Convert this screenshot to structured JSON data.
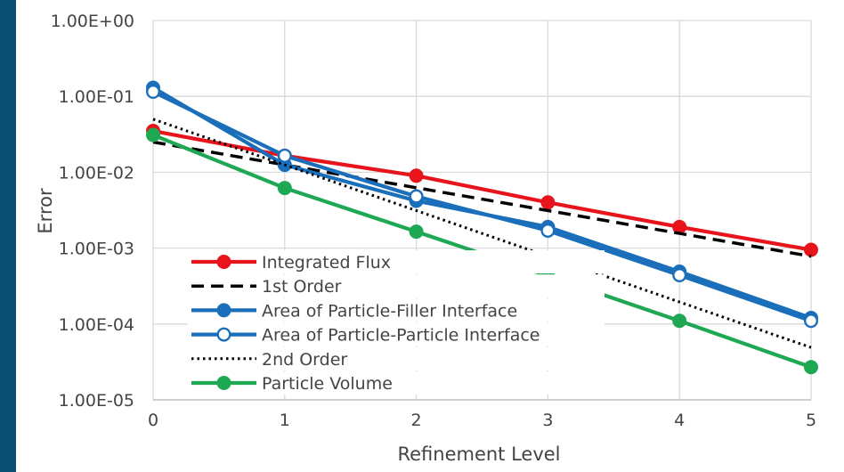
{
  "chart_data": {
    "type": "line",
    "xlabel": "Refinement Level",
    "ylabel": "Error",
    "x": [
      0,
      1,
      2,
      3,
      4,
      5
    ],
    "x_tick_labels": [
      "0",
      "1",
      "2",
      "3",
      "4",
      "5"
    ],
    "y_scale": "log",
    "ylim": [
      1e-05,
      1
    ],
    "y_tick_values": [
      1,
      0.1,
      0.01,
      0.001,
      0.0001,
      1e-05
    ],
    "y_tick_labels": [
      "1.00E+00",
      "1.00E-01",
      "1.00E-02",
      "1.00E-03",
      "1.00E-04",
      "1.00E-05"
    ],
    "grid": "vertical",
    "legend_placement": "inside-bottom-left",
    "series": [
      {
        "name": "Integrated Flux",
        "values": [
          0.035,
          0.0165,
          0.009,
          0.004,
          0.0019,
          0.00095
        ],
        "color": "#e8141c",
        "line": "solid",
        "marker": "filled-circle"
      },
      {
        "name": "1st Order",
        "values": [
          0.025,
          0.0125,
          0.00625,
          0.003125,
          0.0015625,
          0.00078
        ],
        "color": "#000000",
        "line": "dashed",
        "marker": "none"
      },
      {
        "name": "Area of Particle-Filler Interface",
        "values": [
          0.13,
          0.0125,
          0.0042,
          0.0019,
          0.00049,
          0.00012
        ],
        "color": "#1b6fba",
        "line": "solid",
        "marker": "filled-circle"
      },
      {
        "name": "Area of Particle-Particle Interface",
        "values": [
          0.115,
          0.0165,
          0.0048,
          0.0017,
          0.00044,
          0.00011
        ],
        "color": "#1b6fba",
        "line": "solid",
        "marker": "open-circle"
      },
      {
        "name": "2nd Order",
        "values": [
          0.05,
          0.0125,
          0.003125,
          0.00078,
          0.000195,
          4.9e-05
        ],
        "color": "#000000",
        "line": "dotted",
        "marker": "none"
      },
      {
        "name": "Particle Volume",
        "values": [
          0.031,
          0.0062,
          0.00165,
          0.00043,
          0.00011,
          2.7e-05
        ],
        "color": "#1fa854",
        "line": "solid",
        "marker": "filled-circle"
      }
    ]
  }
}
